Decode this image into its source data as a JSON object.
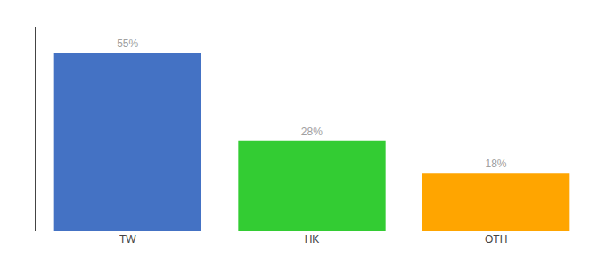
{
  "chart_data": {
    "type": "bar",
    "categories": [
      "TW",
      "HK",
      "OTH"
    ],
    "values": [
      55,
      28,
      18
    ],
    "value_labels": [
      "55%",
      "28%",
      "18%"
    ],
    "colors": [
      "#4472C4",
      "#33CC33",
      "#FFA500"
    ],
    "ylim": [
      0,
      63
    ],
    "data_labels": true,
    "tick_labels": "x",
    "grid": false
  }
}
